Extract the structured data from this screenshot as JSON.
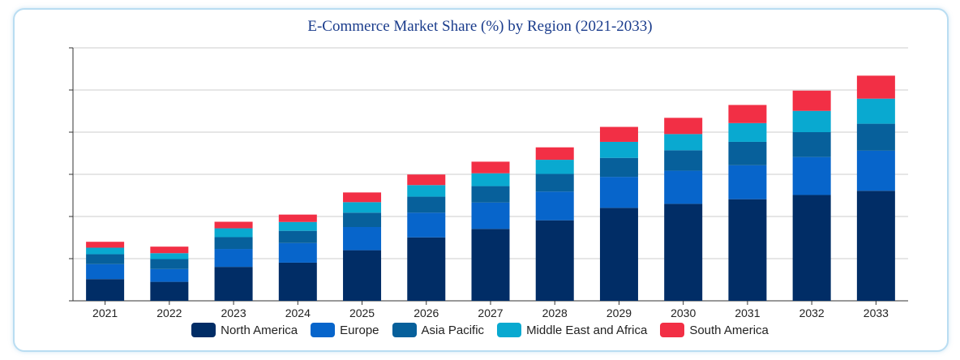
{
  "chart_data": {
    "type": "bar",
    "stacked": true,
    "title": "E-Commerce Market Share (%) by Region (2021-2033)",
    "categories": [
      "2021",
      "2022",
      "2023",
      "2024",
      "2025",
      "2026",
      "2027",
      "2028",
      "2029",
      "2030",
      "2031",
      "2032",
      "2033"
    ],
    "series": [
      {
        "name": "North America",
        "color": "#012d66",
        "values": [
          10.3,
          9.0,
          16.1,
          18.1,
          24.0,
          30.1,
          34.1,
          38.2,
          44.1,
          46.0,
          48.2,
          50.2,
          52.2
        ]
      },
      {
        "name": "Europe",
        "color": "#0765cb",
        "values": [
          7.1,
          6.1,
          8.5,
          9.3,
          11.0,
          11.7,
          12.5,
          13.6,
          14.7,
          15.7,
          16.1,
          18.0,
          19.0
        ]
      },
      {
        "name": "Asia Pacific",
        "color": "#07609b",
        "values": [
          4.7,
          4.7,
          5.6,
          5.8,
          6.8,
          7.6,
          7.8,
          8.4,
          9.0,
          9.7,
          11.1,
          11.8,
          12.8
        ]
      },
      {
        "name": "Middle East and Africa",
        "color": "#09a9d0",
        "values": [
          3.1,
          2.8,
          4.2,
          4.2,
          5.0,
          5.5,
          6.1,
          6.7,
          7.6,
          7.7,
          8.9,
          10.1,
          11.9
        ]
      },
      {
        "name": "South America",
        "color": "#f22f45",
        "values": [
          2.8,
          3.1,
          3.1,
          3.5,
          4.6,
          5.0,
          5.5,
          5.9,
          7.1,
          7.7,
          8.6,
          9.6,
          10.9
        ]
      }
    ],
    "ylim": [
      0,
      120
    ],
    "yticks": [
      0,
      20,
      40,
      60,
      80,
      100,
      120
    ],
    "grid": true,
    "legend": "bottom"
  }
}
